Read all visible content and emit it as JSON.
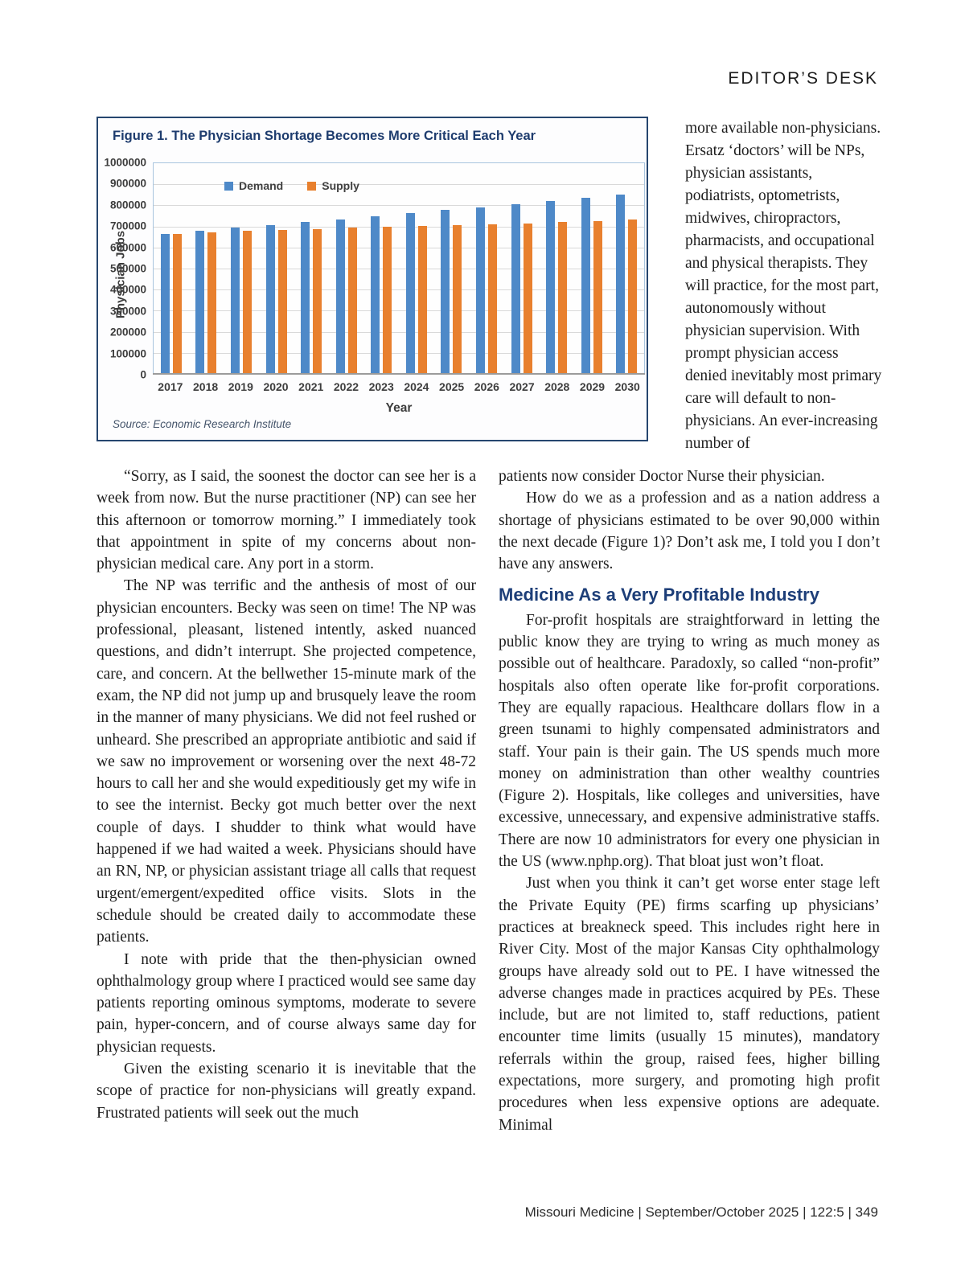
{
  "page": {
    "header_label": "EDITOR’S DESK",
    "footer": "Missouri Medicine  |  September/October 2025  |  122:5  |  349"
  },
  "figure": {
    "title": "Figure 1. The Physician Shortage Becomes More Critical Each Year",
    "source": "Source: Economic Research Institute"
  },
  "chart_data": {
    "type": "bar",
    "title": "Figure 1. The Physician Shortage Becomes More Critical Each Year",
    "categories": [
      "2017",
      "2018",
      "2019",
      "2020",
      "2021",
      "2022",
      "2023",
      "2024",
      "2025",
      "2026",
      "2027",
      "2028",
      "2029",
      "2030"
    ],
    "series": [
      {
        "name": "Demand",
        "color": "#4e89c8",
        "values": [
          665000,
          680000,
          693000,
          707000,
          720000,
          733000,
          747000,
          762000,
          777000,
          792000,
          807000,
          822000,
          837000,
          853000
        ]
      },
      {
        "name": "Supply",
        "color": "#e8802e",
        "values": [
          665000,
          672000,
          678000,
          683000,
          688000,
          693000,
          698000,
          702000,
          706000,
          711000,
          715000,
          721000,
          727000,
          734000
        ]
      }
    ],
    "xlabel": "Year",
    "ylabel": "Physician Jobs",
    "ylim": [
      0,
      1000000
    ],
    "ytick_step": 100000,
    "grid": true,
    "legend_position": "top-left-inside",
    "source": "Source: Economic Research Institute"
  },
  "colors": {
    "navy_accent": "#1e3c6e",
    "heading_blue": "#1d3e78",
    "demand_blue": "#4e89c8",
    "supply_orange": "#e8802e"
  },
  "narrow_column": {
    "paragraphs": [
      {
        "indent": false,
        "text": "more available non-physicians. Ersatz ‘doctors’ will be NPs, physician assistants, podiatrists, optometrists, midwives, chiropractors, pharmacists, and occupational and physical therapists. They will practice, for the most part, autonomously without physician supervision. With prompt physician access denied inevitably most primary care will default to non-physicians. An ever-increasing number of"
      }
    ]
  },
  "left_column": {
    "paragraphs": [
      {
        "indent": true,
        "text": "“Sorry, as I said, the soonest the doctor can see her is a week from now. But the nurse practitioner (NP) can see her this afternoon or tomorrow morning.”  I immediately took that appointment in spite of my concerns about non-physician medical care. Any port in a storm."
      },
      {
        "indent": true,
        "text": "The NP was terrific and the anthesis of most of our physician encounters. Becky was seen on time! The NP was professional, pleasant, listened intently, asked nuanced questions, and didn’t interrupt. She projected competence, care, and concern. At the bellwether 15-minute mark of the exam, the NP did not jump up and brusquely leave the room in the manner of many physicians. We did not feel rushed or unheard. She prescribed an appropriate antibiotic and said if we saw no improvement or worsening over the next 48-72 hours to call her and she would expeditiously get my wife in to see the internist. Becky got much better over the next couple of days. I shudder to think what would have happened if we had waited a week. Physicians should have an RN, NP, or physician assistant triage all calls that request urgent/emergent/expedited office visits. Slots in the schedule should be created daily to accommodate these patients."
      },
      {
        "indent": true,
        "text": "I note with pride that the then-physician owned ophthalmology group where I practiced would see same day patients reporting ominous symptoms, moderate to severe pain, hyper-concern, and of course always same day for physician requests."
      },
      {
        "indent": true,
        "text": "Given the existing scenario it is inevitable that the scope of practice for non-physicians will greatly expand. Frustrated patients will seek out the much"
      }
    ]
  },
  "right_column": {
    "paragraphs": [
      {
        "indent": false,
        "text": "patients now consider Doctor Nurse their physician."
      },
      {
        "indent": true,
        "text": "How do we as a profession and as a nation address a shortage of physicians estimated to be over 90,000 within the next decade (Figure 1)?  Don’t ask me, I told you I don’t have any answers."
      },
      {
        "heading": true,
        "text": "Medicine As a Very Profitable Industry"
      },
      {
        "indent": true,
        "text": "For-profit hospitals are straightforward in letting the public know they are trying to wring as much money as possible out of healthcare. Paradoxly, so called “non-profit” hospitals also often operate like for-profit corporations. They are equally rapacious. Healthcare dollars flow in a green tsunami to highly compensated administrators and staff. Your pain is their gain. The US spends much more money on administration than other wealthy countries (Figure 2). Hospitals, like colleges and universities, have excessive, unnecessary, and expensive administrative staffs. There are now 10 administrators for every one physician in the US (www.nphp.org).  That bloat just won’t float."
      },
      {
        "indent": true,
        "text": "Just when you think it can’t get worse enter stage left the Private Equity (PE) firms scarfing up physicians’ practices at breakneck speed. This includes right here in River City. Most of the major Kansas City ophthalmology groups have already sold out to PE.  I have witnessed the adverse changes made in practices acquired by PEs. These include, but are not limited to, staff reductions, patient encounter time limits (usually 15 minutes), mandatory referrals within the group, raised fees, higher billing expectations, more surgery, and promoting high profit procedures when less expensive options are adequate. Minimal"
      }
    ]
  }
}
